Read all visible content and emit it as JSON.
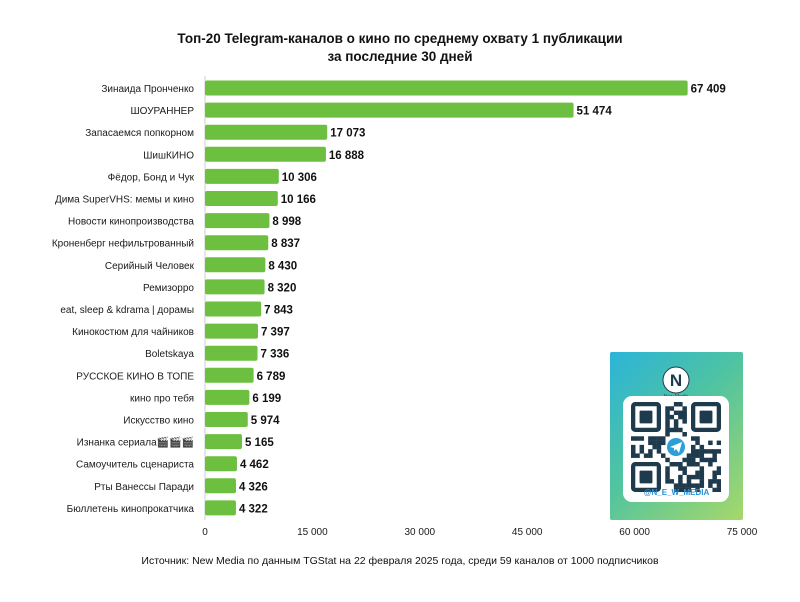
{
  "chart_data": {
    "type": "bar",
    "orientation": "horizontal",
    "title": "Топ-20 Telegram-каналов о кино по среднему охвату 1 публикации",
    "subtitle": "за последние 30 дней",
    "categories": [
      "Зинаида Пронченко",
      "ШОУРАННЕР",
      "Запасаемся попкорном",
      "ШишКИНО",
      "Фёдор, Бонд и Чук",
      "Дима SuperVHS: мемы и кино",
      "Новости кинопроизводства",
      "Кроненберг нефильтрованный",
      "Серийный Человек",
      "Ремизорро",
      "eat, sleep & kdrama | дорамы",
      "Кинокостюм для чайников",
      "Boletskaya",
      "РУССКОЕ КИНО В ТОПЕ",
      "кино про тебя",
      "Искусство кино",
      "Изнанка сериала🎬🎬🎬",
      "Самоучитель сценариста",
      "Рты Ванессы Паради",
      "Бюллетень кинопрокатчика"
    ],
    "values": [
      67409,
      51474,
      17073,
      16888,
      10306,
      10166,
      8998,
      8837,
      8430,
      8320,
      7843,
      7397,
      7336,
      6789,
      6199,
      5974,
      5165,
      4462,
      4326,
      4322
    ],
    "value_labels": [
      "67 409",
      "51 474",
      "17 073",
      "16 888",
      "10 306",
      "10 166",
      "8 998",
      "8 837",
      "8 430",
      "8 320",
      "7 843",
      "7 397",
      "7 336",
      "6 789",
      "6 199",
      "5 974",
      "5 165",
      "4 462",
      "4 326",
      "4 322"
    ],
    "xlim": [
      0,
      75000
    ],
    "xticks": [
      0,
      15000,
      30000,
      45000,
      60000,
      75000
    ],
    "xtick_labels": [
      "0",
      "15 000",
      "30 000",
      "45 000",
      "60 000",
      "75 000"
    ],
    "grid": false,
    "bar_color": "#6cbf3f"
  },
  "source": "Источник: New Media по данным TGStat на 22 февраля 2025 года, среди 59 каналов от 1000 подписчиков",
  "promo": {
    "logo_text": "N",
    "logo_caption": "New Media",
    "handle": "@N_E_W_MEDIA",
    "qr_center_icon": "telegram-icon"
  }
}
